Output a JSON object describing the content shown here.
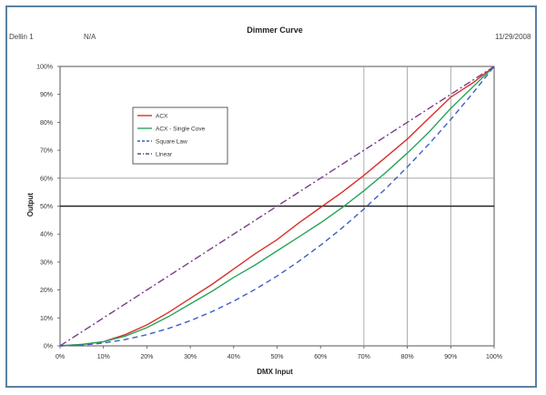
{
  "header": {
    "left_1": "Dellin 1",
    "left_2": "N/A",
    "right": "11/29/2008"
  },
  "chart_data": {
    "type": "line",
    "title": "Dimmer Curve",
    "xlabel": "DMX Input",
    "ylabel": "Output",
    "xlim": [
      0,
      100
    ],
    "ylim": [
      0,
      100
    ],
    "x_ticks": [
      "0%",
      "10%",
      "20%",
      "30%",
      "40%",
      "50%",
      "60%",
      "70%",
      "80%",
      "90%",
      "100%"
    ],
    "y_ticks": [
      "0%",
      "10%",
      "20%",
      "30%",
      "40%",
      "50%",
      "60%",
      "70%",
      "80%",
      "90%",
      "100%"
    ],
    "grid": "vertical lines at 70%, 80%, 90%",
    "reference_line": 50,
    "highlight_line": 60,
    "legend_position": "upper-left",
    "series": [
      {
        "name": "ACX",
        "color": "#d9302c",
        "dash": "solid",
        "x": [
          0,
          5,
          10,
          15,
          20,
          25,
          30,
          35,
          40,
          45,
          50,
          55,
          60,
          65,
          70,
          75,
          80,
          85,
          90,
          95,
          100
        ],
        "y": [
          0,
          0.5,
          1.5,
          4,
          7.5,
          12,
          17,
          22,
          27.5,
          33,
          38,
          44,
          49.5,
          55,
          61,
          67.5,
          74,
          81.5,
          89,
          94,
          100
        ]
      },
      {
        "name": "ACX - Single Cove",
        "color": "#2aa55a",
        "dash": "solid",
        "x": [
          0,
          5,
          10,
          15,
          20,
          25,
          30,
          35,
          40,
          45,
          50,
          55,
          60,
          65,
          70,
          75,
          80,
          85,
          90,
          95,
          100
        ],
        "y": [
          0,
          0.5,
          1.5,
          3.5,
          6.5,
          10.5,
          15,
          19.5,
          24.5,
          29,
          34,
          39,
          44,
          49.5,
          55.5,
          62,
          69,
          76.5,
          85,
          92.5,
          100
        ]
      },
      {
        "name": "Square Law",
        "color": "#3c5fc4",
        "dash": "dashed",
        "x": [
          0,
          5,
          10,
          15,
          20,
          25,
          30,
          35,
          40,
          45,
          50,
          55,
          60,
          65,
          70,
          75,
          80,
          85,
          90,
          95,
          100
        ],
        "y": [
          0,
          0.25,
          1,
          2.25,
          4,
          6.25,
          9,
          12.25,
          16,
          20.25,
          25,
          30.25,
          36,
          42.25,
          49,
          56.25,
          64,
          72.25,
          81,
          90.25,
          100
        ]
      },
      {
        "name": "Linear",
        "color": "#7a3c8a",
        "dash": "dashdot",
        "x": [
          0,
          100
        ],
        "y": [
          0,
          100
        ]
      }
    ]
  }
}
